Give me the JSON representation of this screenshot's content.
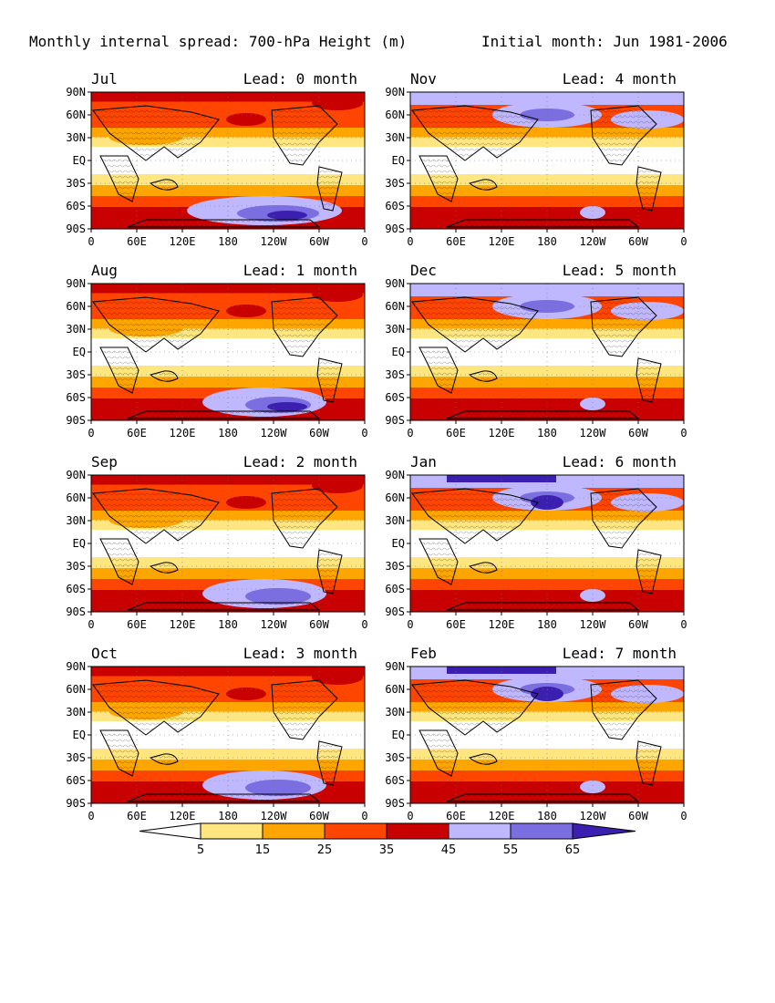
{
  "title_left": "Monthly internal spread: 700-hPa Height (m)",
  "title_right": "Initial month: Jun 1981-2006",
  "y_ticks": [
    "90N",
    "60N",
    "30N",
    "EQ",
    "30S",
    "60S",
    "90S"
  ],
  "x_ticks_default": [
    "0",
    "60E",
    "120E",
    "180",
    "120W",
    "60W",
    "0"
  ],
  "x_ticks_feb": [
    "0",
    "60E",
    "120E",
    "180",
    "120W",
    "60W",
    "0"
  ],
  "panels": [
    {
      "month": "Jul",
      "lead": "Lead: 0 month"
    },
    {
      "month": "Nov",
      "lead": "Lead: 4 month"
    },
    {
      "month": "Aug",
      "lead": "Lead: 1 month"
    },
    {
      "month": "Dec",
      "lead": "Lead: 5 month"
    },
    {
      "month": "Sep",
      "lead": "Lead: 2 month"
    },
    {
      "month": "Jan",
      "lead": "Lead: 6 month"
    },
    {
      "month": "Oct",
      "lead": "Lead: 3 month"
    },
    {
      "month": "Feb",
      "lead": "Lead: 7 month"
    }
  ],
  "colorbar": {
    "labels": [
      "5",
      "15",
      "25",
      "35",
      "45",
      "55",
      "65"
    ],
    "colors": [
      "#ffffff",
      "#ffe680",
      "#ffa500",
      "#ff4500",
      "#c80000",
      "#c0b8ff",
      "#7a6ee0",
      "#3a1fb0"
    ]
  }
}
